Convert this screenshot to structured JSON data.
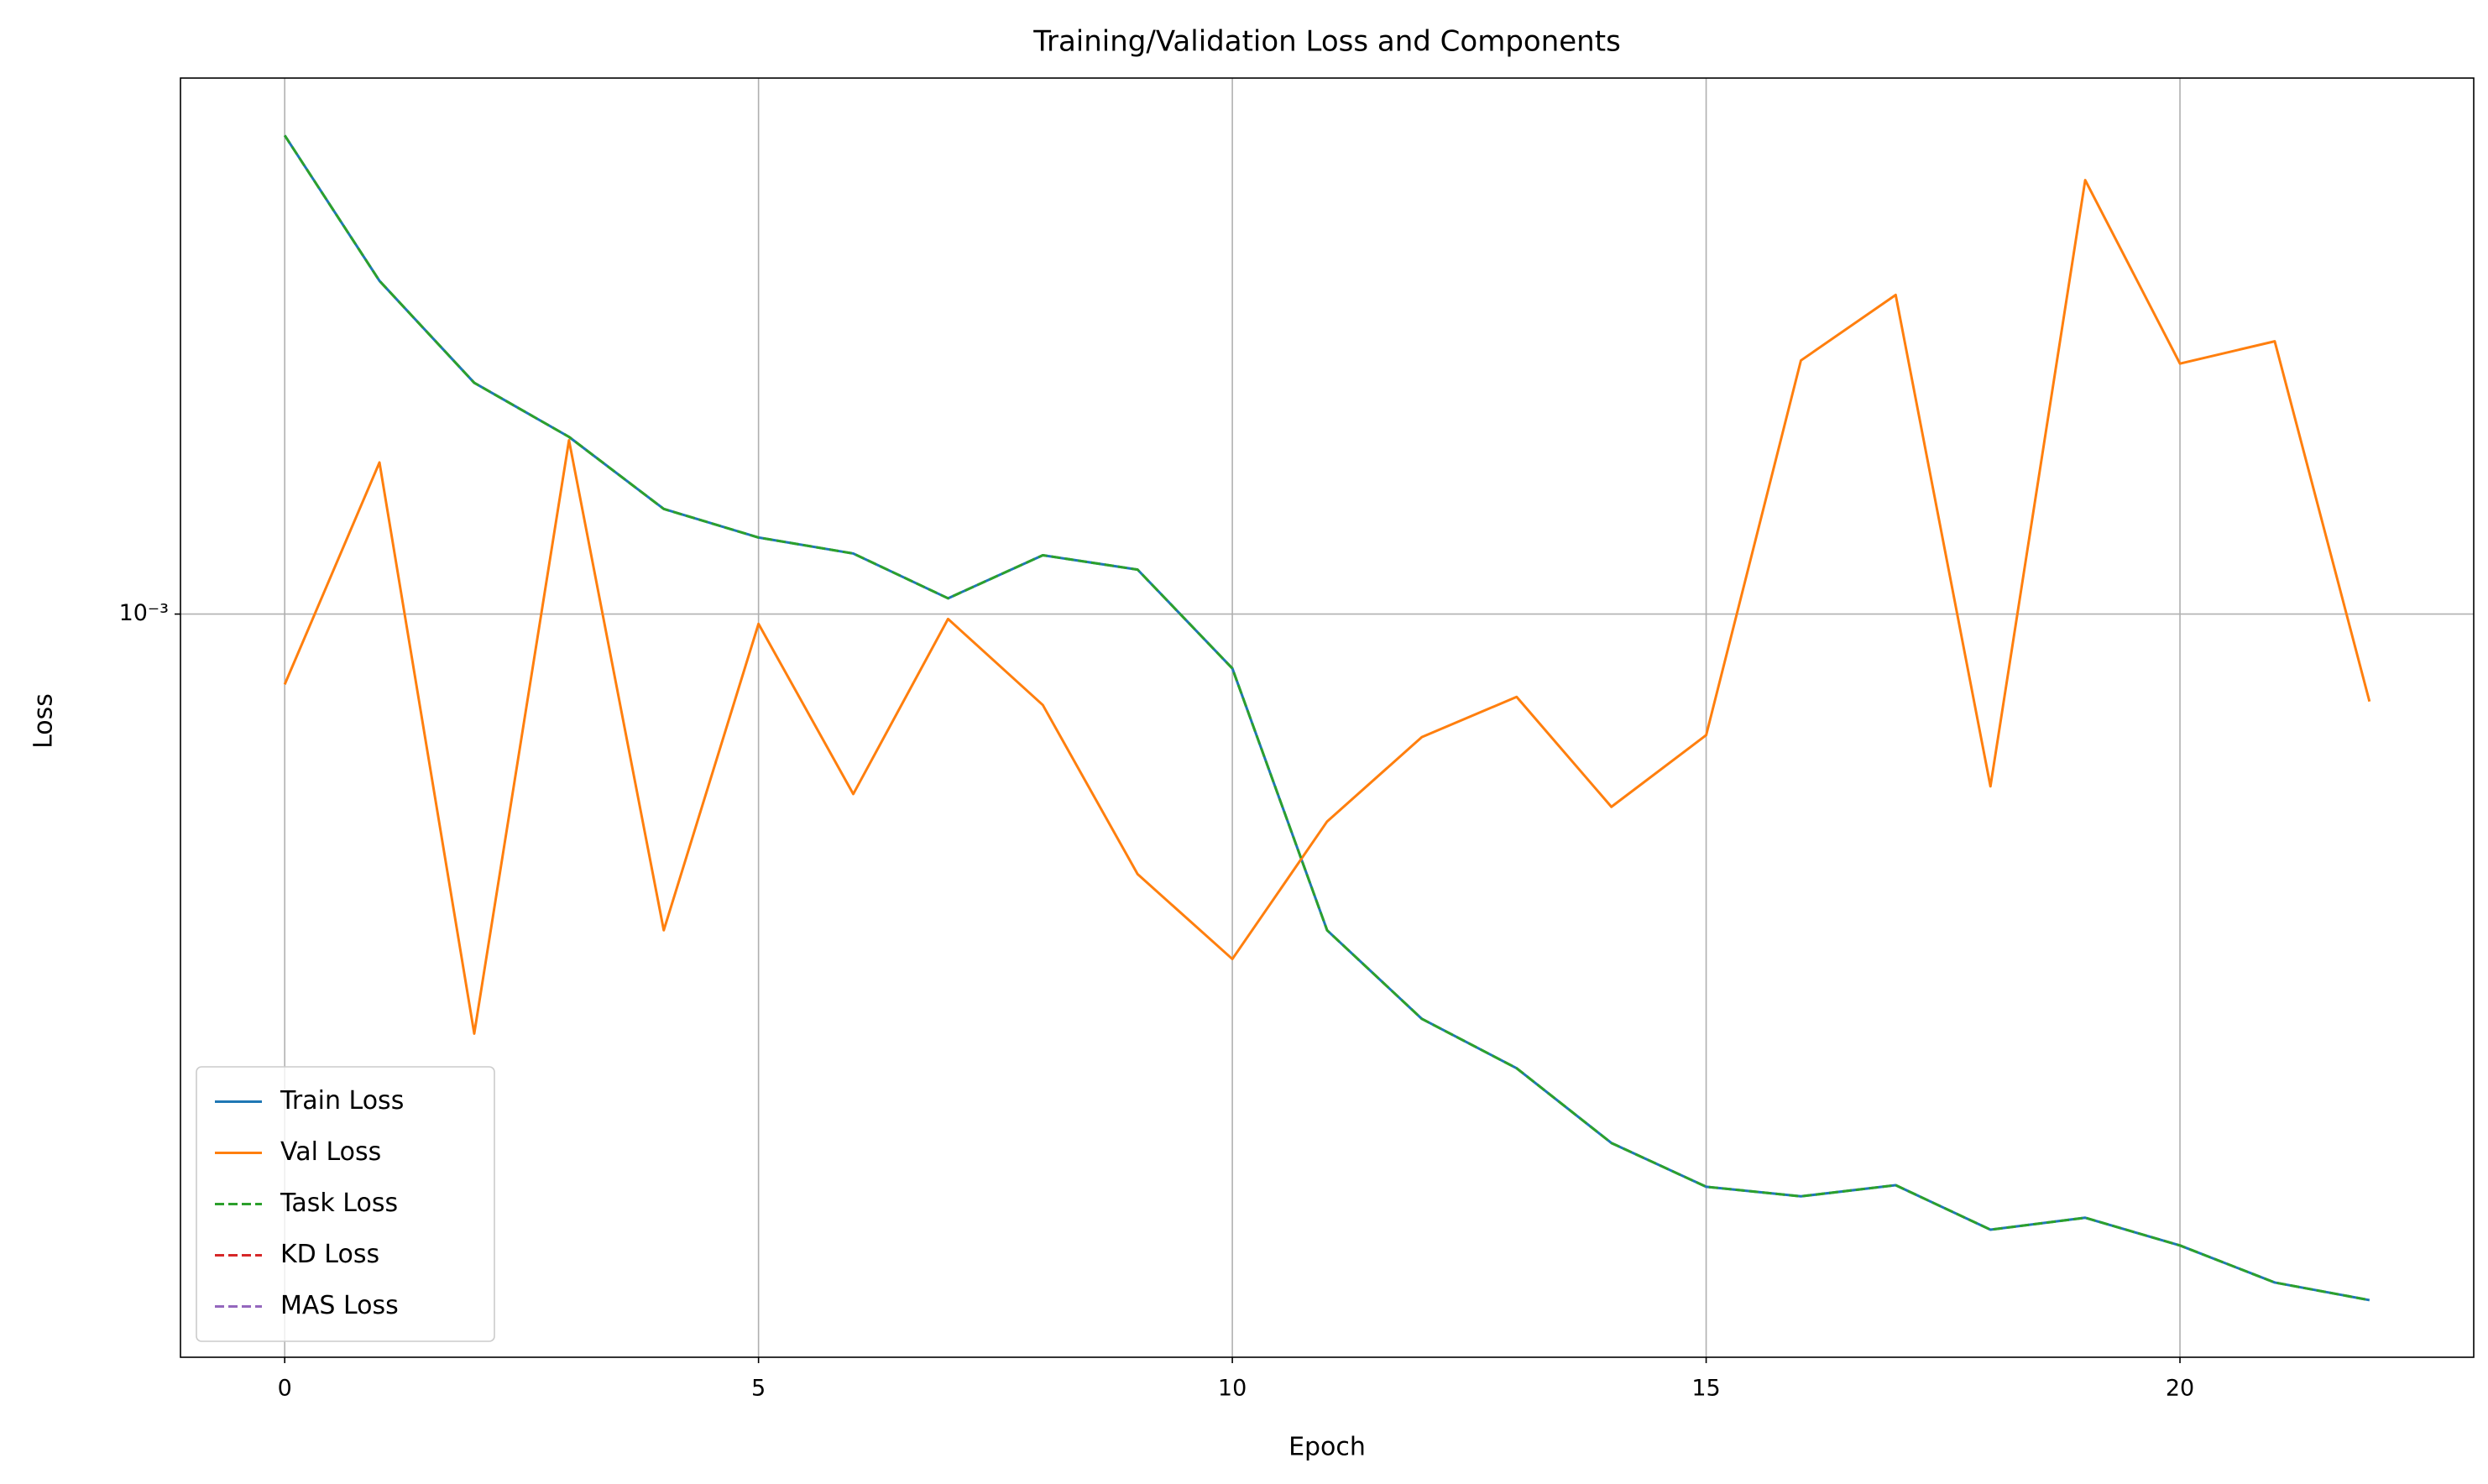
{
  "chart_data": {
    "type": "line",
    "title": "Training/Validation Loss and Components",
    "xlabel": "Epoch",
    "ylabel": "Loss",
    "x": [
      0,
      1,
      2,
      3,
      4,
      5,
      6,
      7,
      8,
      9,
      10,
      11,
      12,
      13,
      14,
      15,
      16,
      17,
      18,
      19,
      20,
      21,
      22
    ],
    "series": [
      {
        "name": "Train Loss",
        "color": "#1f77b4",
        "dashed": false,
        "values": [
          0.002683,
          0.001988,
          0.001611,
          0.001441,
          0.001242,
          0.001171,
          0.001133,
          0.001033,
          0.001129,
          0.001096,
          0.000894,
          0.000521,
          0.000434,
          0.000392,
          0.000336,
          0.000307,
          0.000301,
          0.000308,
          0.000281,
          0.000288,
          0.000272,
          0.000252,
          0.000243
        ]
      },
      {
        "name": "Val Loss",
        "color": "#ff7f0e",
        "dashed": false,
        "values": [
          0.000865,
          0.001367,
          0.000421,
          0.001431,
          0.000521,
          0.00098,
          0.00069,
          0.00099,
          0.000829,
          0.000585,
          0.000491,
          0.000652,
          0.000776,
          0.000843,
          0.000672,
          0.000779,
          0.001687,
          0.001931,
          0.000701,
          0.002447,
          0.001676,
          0.001755,
          0.000835
        ]
      },
      {
        "name": "Task Loss",
        "color": "#2ca02c",
        "dashed": true,
        "values": [
          0.002683,
          0.001988,
          0.001611,
          0.001441,
          0.001242,
          0.001171,
          0.001133,
          0.001033,
          0.001129,
          0.001096,
          0.000894,
          0.000521,
          0.000434,
          0.000392,
          0.000336,
          0.000307,
          0.000301,
          0.000308,
          0.000281,
          0.000288,
          0.000272,
          0.000252,
          0.000243
        ]
      },
      {
        "name": "KD Loss",
        "color": "#d62728",
        "dashed": true,
        "values": [
          null,
          null,
          null,
          null,
          null,
          null,
          null,
          null,
          null,
          null,
          null,
          null,
          null,
          null,
          null,
          null,
          null,
          null,
          null,
          null,
          null,
          null,
          null
        ]
      },
      {
        "name": "MAS Loss",
        "color": "#9467bd",
        "dashed": true,
        "values": [
          null,
          null,
          null,
          null,
          null,
          null,
          null,
          null,
          null,
          null,
          null,
          null,
          null,
          null,
          null,
          null,
          null,
          null,
          null,
          null,
          null,
          null,
          null
        ]
      }
    ],
    "xlim": [
      -1.1,
      23.1
    ],
    "xticks": [
      0,
      5,
      10,
      15,
      20
    ],
    "ylim": [
      0.000216,
      0.00302
    ],
    "ylog": true,
    "yticks": [
      {
        "value": 0.001,
        "label": "10⁻³"
      }
    ],
    "grid": true,
    "legend": "lower left"
  }
}
